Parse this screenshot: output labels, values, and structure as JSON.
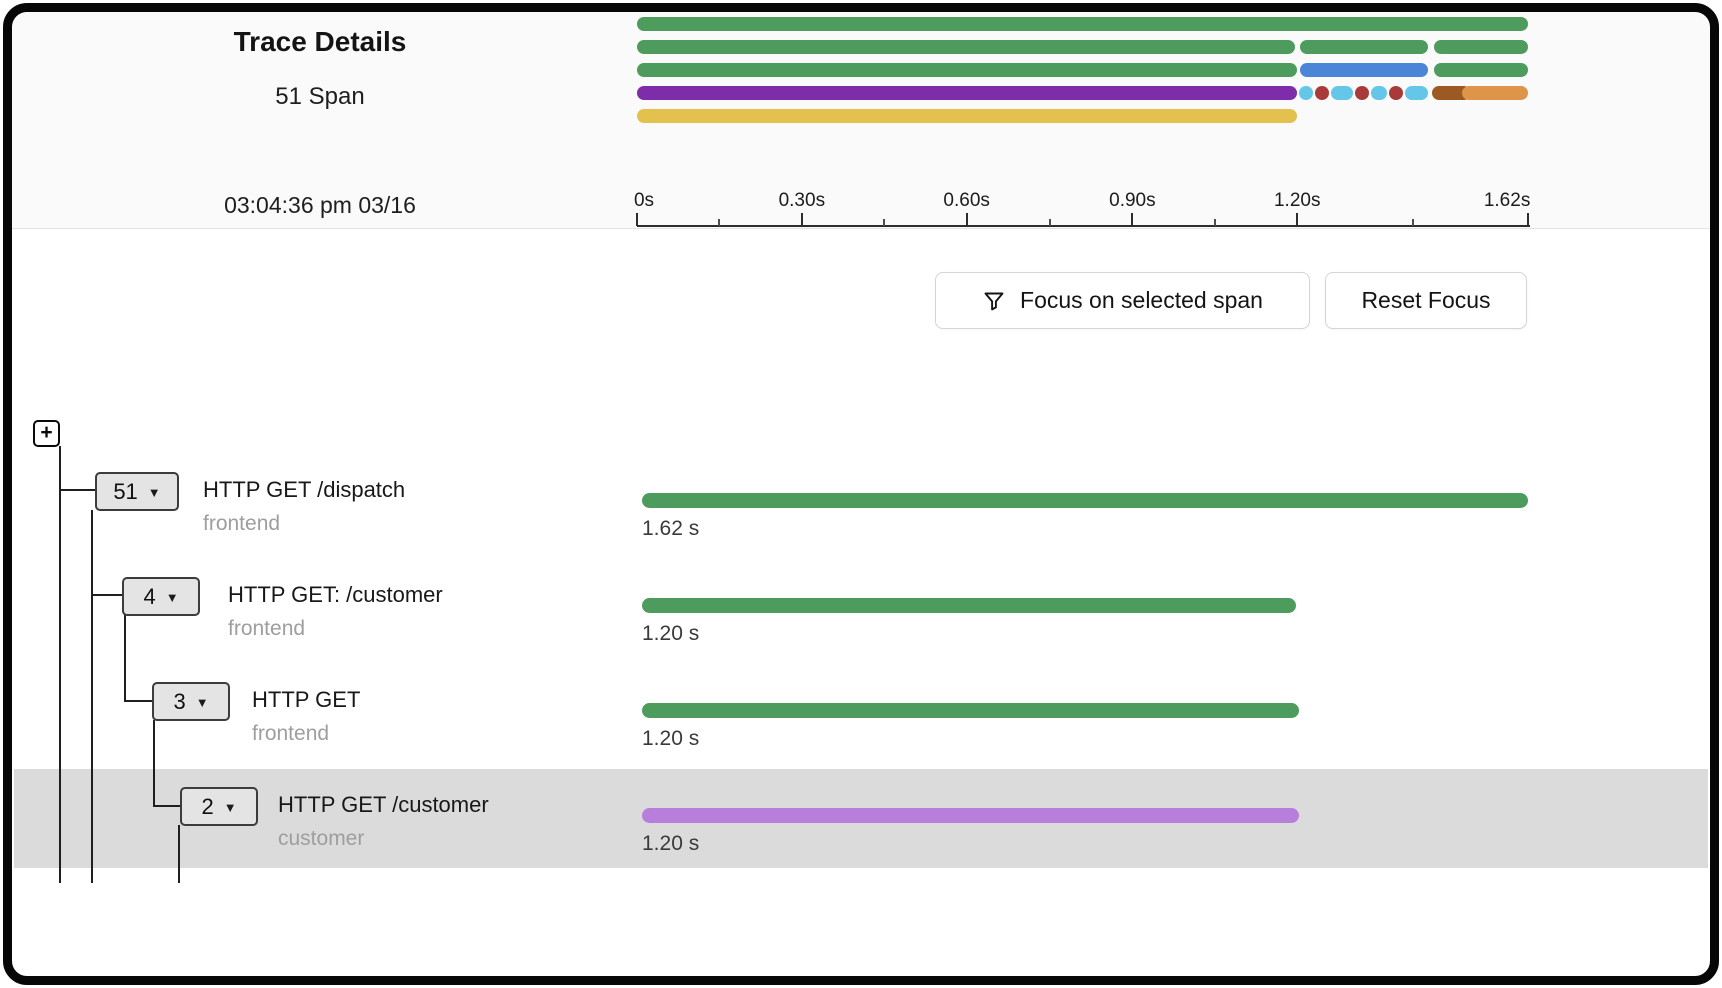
{
  "header": {
    "title": "Trace Details",
    "span_count": "51 Span",
    "timestamp": "03:04:36 pm 03/16"
  },
  "toolbar": {
    "focus_label": "Focus on selected span",
    "reset_label": "Reset Focus"
  },
  "timeline": {
    "total_duration": "1.62s",
    "ticks": [
      {
        "label": "0s",
        "pct": 0
      },
      {
        "label": "0.30s",
        "pct": 18.5
      },
      {
        "label": "0.60s",
        "pct": 37.0
      },
      {
        "label": "0.90s",
        "pct": 55.6
      },
      {
        "label": "1.20s",
        "pct": 74.1
      },
      {
        "label": "1.62s",
        "pct": 100
      }
    ]
  },
  "icons": {
    "caret_down": "▼",
    "plus": "+"
  },
  "colors": {
    "green": "#4e9b5e",
    "blue": "#4a85d8",
    "purple": "#7d2daa",
    "light_purple": "#b87edb",
    "yellow": "#e3c14f",
    "cyan": "#64c6e9",
    "red": "#a93a3a",
    "brown": "#9c5a22",
    "orange": "#de9449",
    "selected_row_bg": "#dbdbdb"
  },
  "minimap": {
    "rows": [
      {
        "segments": [
          {
            "color": "green",
            "start": 0,
            "end": 100
          }
        ]
      },
      {
        "segments": [
          {
            "color": "green",
            "start": 0,
            "end": 73.8
          },
          {
            "color": "green",
            "start": 74.4,
            "end": 88.8
          },
          {
            "color": "green",
            "start": 89.5,
            "end": 100
          }
        ]
      },
      {
        "segments": [
          {
            "color": "green",
            "start": 0,
            "end": 74.1
          },
          {
            "color": "blue",
            "start": 74.4,
            "end": 88.8
          },
          {
            "color": "green",
            "start": 89.5,
            "end": 100
          }
        ]
      },
      {
        "segments": [
          {
            "color": "purple",
            "start": 0,
            "end": 74.1
          },
          {
            "color": "cyan",
            "start": 74.3,
            "end": 75.9
          },
          {
            "color": "red",
            "start": 76.1,
            "end": 77.7
          },
          {
            "color": "cyan",
            "start": 77.9,
            "end": 80.4
          },
          {
            "color": "red",
            "start": 80.6,
            "end": 82.2
          },
          {
            "color": "cyan",
            "start": 82.4,
            "end": 84.2
          },
          {
            "color": "red",
            "start": 84.4,
            "end": 86.0
          },
          {
            "color": "cyan",
            "start": 86.2,
            "end": 88.8
          },
          {
            "color": "brown",
            "start": 89.2,
            "end": 93.6
          },
          {
            "color": "orange",
            "start": 92.6,
            "end": 100
          }
        ]
      },
      {
        "segments": [
          {
            "color": "yellow",
            "start": 0,
            "end": 74.1
          }
        ]
      }
    ]
  },
  "tree": {
    "rows": [
      {
        "badge": "51",
        "title": "HTTP GET /dispatch",
        "service": "frontend",
        "duration": "1.62 s",
        "bar_color": "green",
        "bar_start": 0,
        "bar_end": 100,
        "selected": false
      },
      {
        "badge": "4",
        "title": "HTTP GET: /customer",
        "service": "frontend",
        "duration": "1.20 s",
        "bar_color": "green",
        "bar_start": 0,
        "bar_end": 73.8,
        "selected": false
      },
      {
        "badge": "3",
        "title": "HTTP GET",
        "service": "frontend",
        "duration": "1.20 s",
        "bar_color": "green",
        "bar_start": 0,
        "bar_end": 74.1,
        "selected": false
      },
      {
        "badge": "2",
        "title": "HTTP GET /customer",
        "service": "customer",
        "duration": "1.20 s",
        "bar_color": "light_purple",
        "bar_start": 0,
        "bar_end": 74.1,
        "selected": true
      }
    ]
  }
}
